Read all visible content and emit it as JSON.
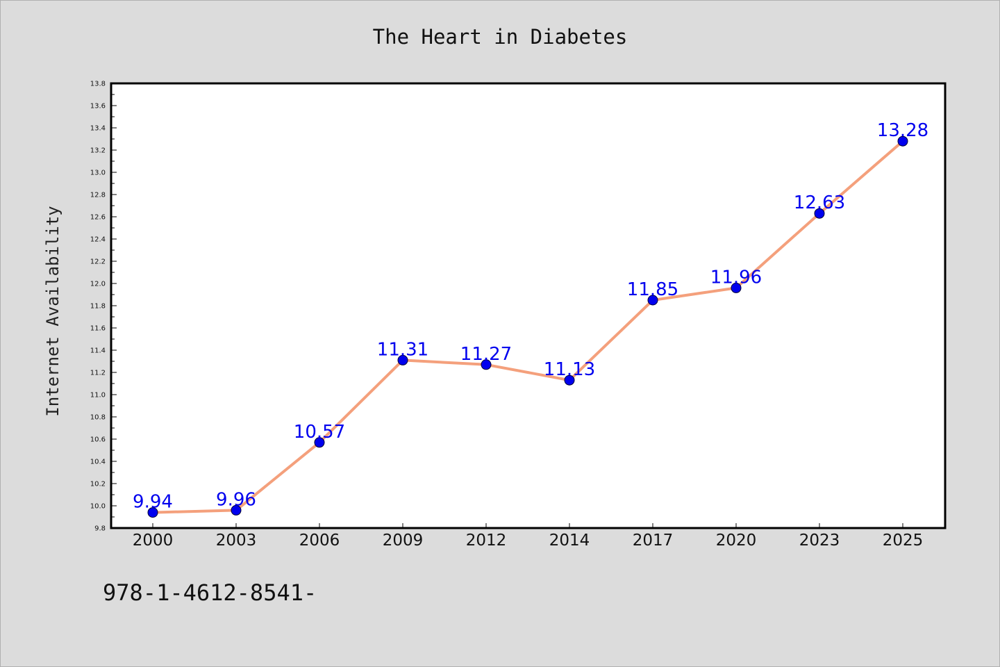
{
  "chart_data": {
    "type": "line",
    "title": "The Heart in Diabetes",
    "xlabel": "",
    "ylabel": "Internet Availability",
    "categories": [
      "2000",
      "2003",
      "2006",
      "2009",
      "2012",
      "2014",
      "2017",
      "2020",
      "2023",
      "2025"
    ],
    "series": [
      {
        "values": [
          9.94,
          9.96,
          10.57,
          11.31,
          11.27,
          11.13,
          11.85,
          11.96,
          12.63,
          13.28
        ],
        "data_labels": [
          "9.94",
          "9.96",
          "10.57",
          "11.31",
          "11.27",
          "11.13",
          "11.85",
          "11.96",
          "12.63",
          "13.28"
        ]
      }
    ],
    "ylim": [
      9.8,
      13.8
    ],
    "yticks": [
      "9.8",
      "10.0",
      "10.2",
      "10.4",
      "10.6",
      "10.8",
      "11.0",
      "11.2",
      "11.4",
      "11.6",
      "11.8",
      "12.0",
      "12.2",
      "12.4",
      "12.6",
      "12.8",
      "13.0",
      "13.2",
      "13.4",
      "13.6",
      "13.8"
    ],
    "grid": false,
    "legend": "none",
    "colors": {
      "line": "#f4a07c",
      "marker": "#0000ee",
      "data_label": "#0000ee",
      "background": "#dcdcdc",
      "plot_area": "#ffffff"
    }
  },
  "footer": {
    "text": "978-1-4612-8541-"
  }
}
